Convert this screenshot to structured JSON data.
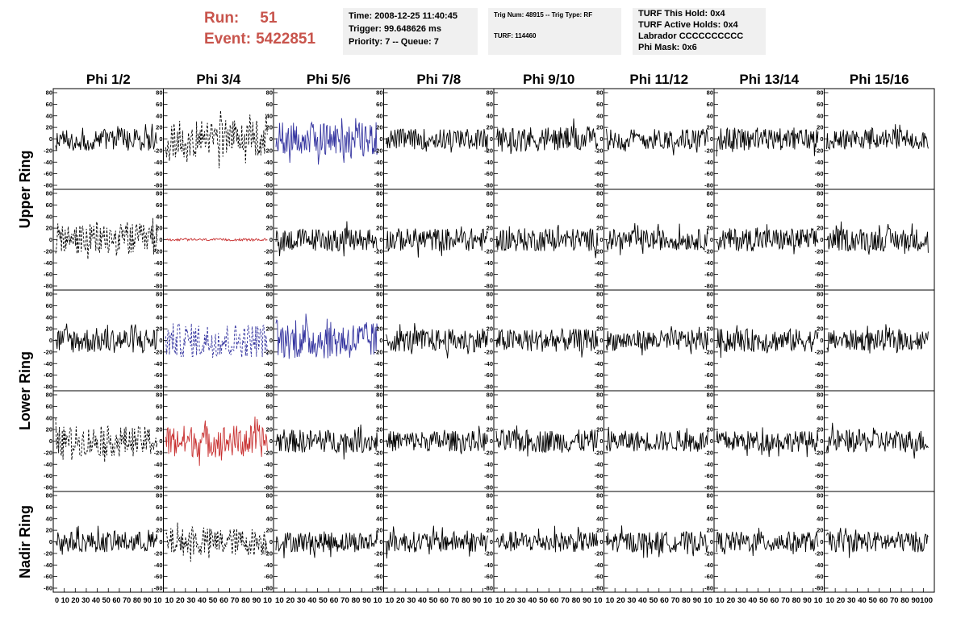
{
  "header": {
    "run_label": "Run:",
    "run_value": "51",
    "event_label": "Event:",
    "event_value": "5422851",
    "box1": [
      "Time: 2008-12-25 11:40:45",
      "Trigger: 99.648626 ms",
      "Priority: 7 -- Queue: 7"
    ],
    "box2": [
      "Trig Num: 48915 -- Trig Type: RF",
      "",
      "TURF: 114460"
    ],
    "box3": [
      "TURF This Hold: 0x4",
      "TURF Active Holds: 0x4",
      "Labrador CCCCCCCCCC",
      "Phi Mask: 0x6"
    ]
  },
  "colors": {
    "normal": "#000000",
    "triggered": "#3535a0",
    "hold": "#c83030"
  },
  "chart_data": {
    "type": "line",
    "columns": [
      "Phi 1/2",
      "Phi 3/4",
      "Phi 5/6",
      "Phi 7/8",
      "Phi 9/10",
      "Phi 11/12",
      "Phi 13/14",
      "Phi 15/16"
    ],
    "rows": [
      "Upper Ring",
      "Upper Ring",
      "Lower Ring",
      "Lower Ring",
      "Nadir Ring"
    ],
    "row_group_labels": [
      {
        "label": "Upper Ring",
        "rows": [
          0,
          1
        ]
      },
      {
        "label": "Lower Ring",
        "rows": [
          2,
          3
        ]
      },
      {
        "label": "Nadir Ring",
        "rows": [
          4,
          4
        ]
      }
    ],
    "ylim": [
      -80,
      80
    ],
    "yticks": [
      "80",
      "60",
      "40",
      "20",
      "0",
      "-20",
      "-40",
      "-60",
      "-80"
    ],
    "xlim": [
      0,
      100
    ],
    "xticks": [
      "0",
      "10",
      "20",
      "30",
      "40",
      "50",
      "60",
      "70",
      "80",
      "90",
      "100"
    ],
    "xtick_text": [
      "0 10 20 30 40 50 60 70 80 90 10",
      "10 20 30 40 50 60 70 80 90 10",
      "10 20 30 40 50 60 70 80 90 10",
      "10 20 30 40 50 60 70 80 90 10",
      "10 20 30 40 50 60 70 80 90 10",
      "10 20 30 40 50 60 70 80 90 10",
      "10 20 30 40 50 60 70 80 90 10",
      "10 20 30 40 50 60 70 80 90100"
    ],
    "traces": [
      [
        "normal",
        "dashed",
        "triggered",
        "normal",
        "normal",
        "normal",
        "normal",
        "normal"
      ],
      [
        "dashed",
        "hold",
        "normal",
        "normal",
        "normal",
        "normal",
        "normal",
        "normal"
      ],
      [
        "normal",
        "dashed-triggered",
        "triggered",
        "normal",
        "normal",
        "normal",
        "normal",
        "normal"
      ],
      [
        "dashed",
        "hold",
        "normal",
        "normal",
        "normal",
        "normal",
        "normal",
        "normal"
      ],
      [
        "normal",
        "dashed",
        "normal",
        "normal",
        "normal",
        "normal",
        "normal",
        "normal"
      ]
    ],
    "amplitude": [
      [
        20,
        32,
        30,
        18,
        22,
        18,
        20,
        18
      ],
      [
        28,
        2,
        20,
        20,
        20,
        18,
        20,
        20
      ],
      [
        22,
        30,
        32,
        20,
        20,
        18,
        20,
        18
      ],
      [
        26,
        28,
        20,
        18,
        20,
        18,
        18,
        20
      ],
      [
        18,
        24,
        18,
        18,
        18,
        18,
        18,
        18
      ]
    ]
  }
}
